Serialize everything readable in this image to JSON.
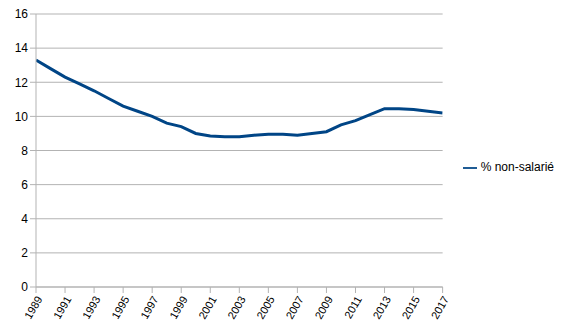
{
  "chart_data": {
    "type": "line",
    "x": [
      1989,
      1990,
      1991,
      1992,
      1993,
      1994,
      1995,
      1996,
      1997,
      1998,
      1999,
      2000,
      2001,
      2002,
      2003,
      2004,
      2005,
      2006,
      2007,
      2008,
      2009,
      2010,
      2011,
      2012,
      2013,
      2014,
      2015,
      2016,
      2017
    ],
    "series": [
      {
        "name": "% non-salarié",
        "color": "#004586",
        "values": [
          13.3,
          12.8,
          12.3,
          11.9,
          11.5,
          11.05,
          10.6,
          10.3,
          10.0,
          9.6,
          9.4,
          9.0,
          8.85,
          8.8,
          8.8,
          8.9,
          8.95,
          8.95,
          8.9,
          9.0,
          9.1,
          9.5,
          9.75,
          10.1,
          10.45,
          10.45,
          10.4,
          10.3,
          10.2
        ]
      }
    ],
    "xlim": [
      1989,
      2017
    ],
    "xticks": [
      1989,
      1991,
      1993,
      1995,
      1997,
      1999,
      2001,
      2003,
      2005,
      2007,
      2009,
      2011,
      2013,
      2015,
      2017
    ],
    "ylim": [
      0,
      16
    ],
    "yticks": [
      0,
      2,
      4,
      6,
      8,
      10,
      12,
      14,
      16
    ],
    "grid": true,
    "legend": "right"
  }
}
